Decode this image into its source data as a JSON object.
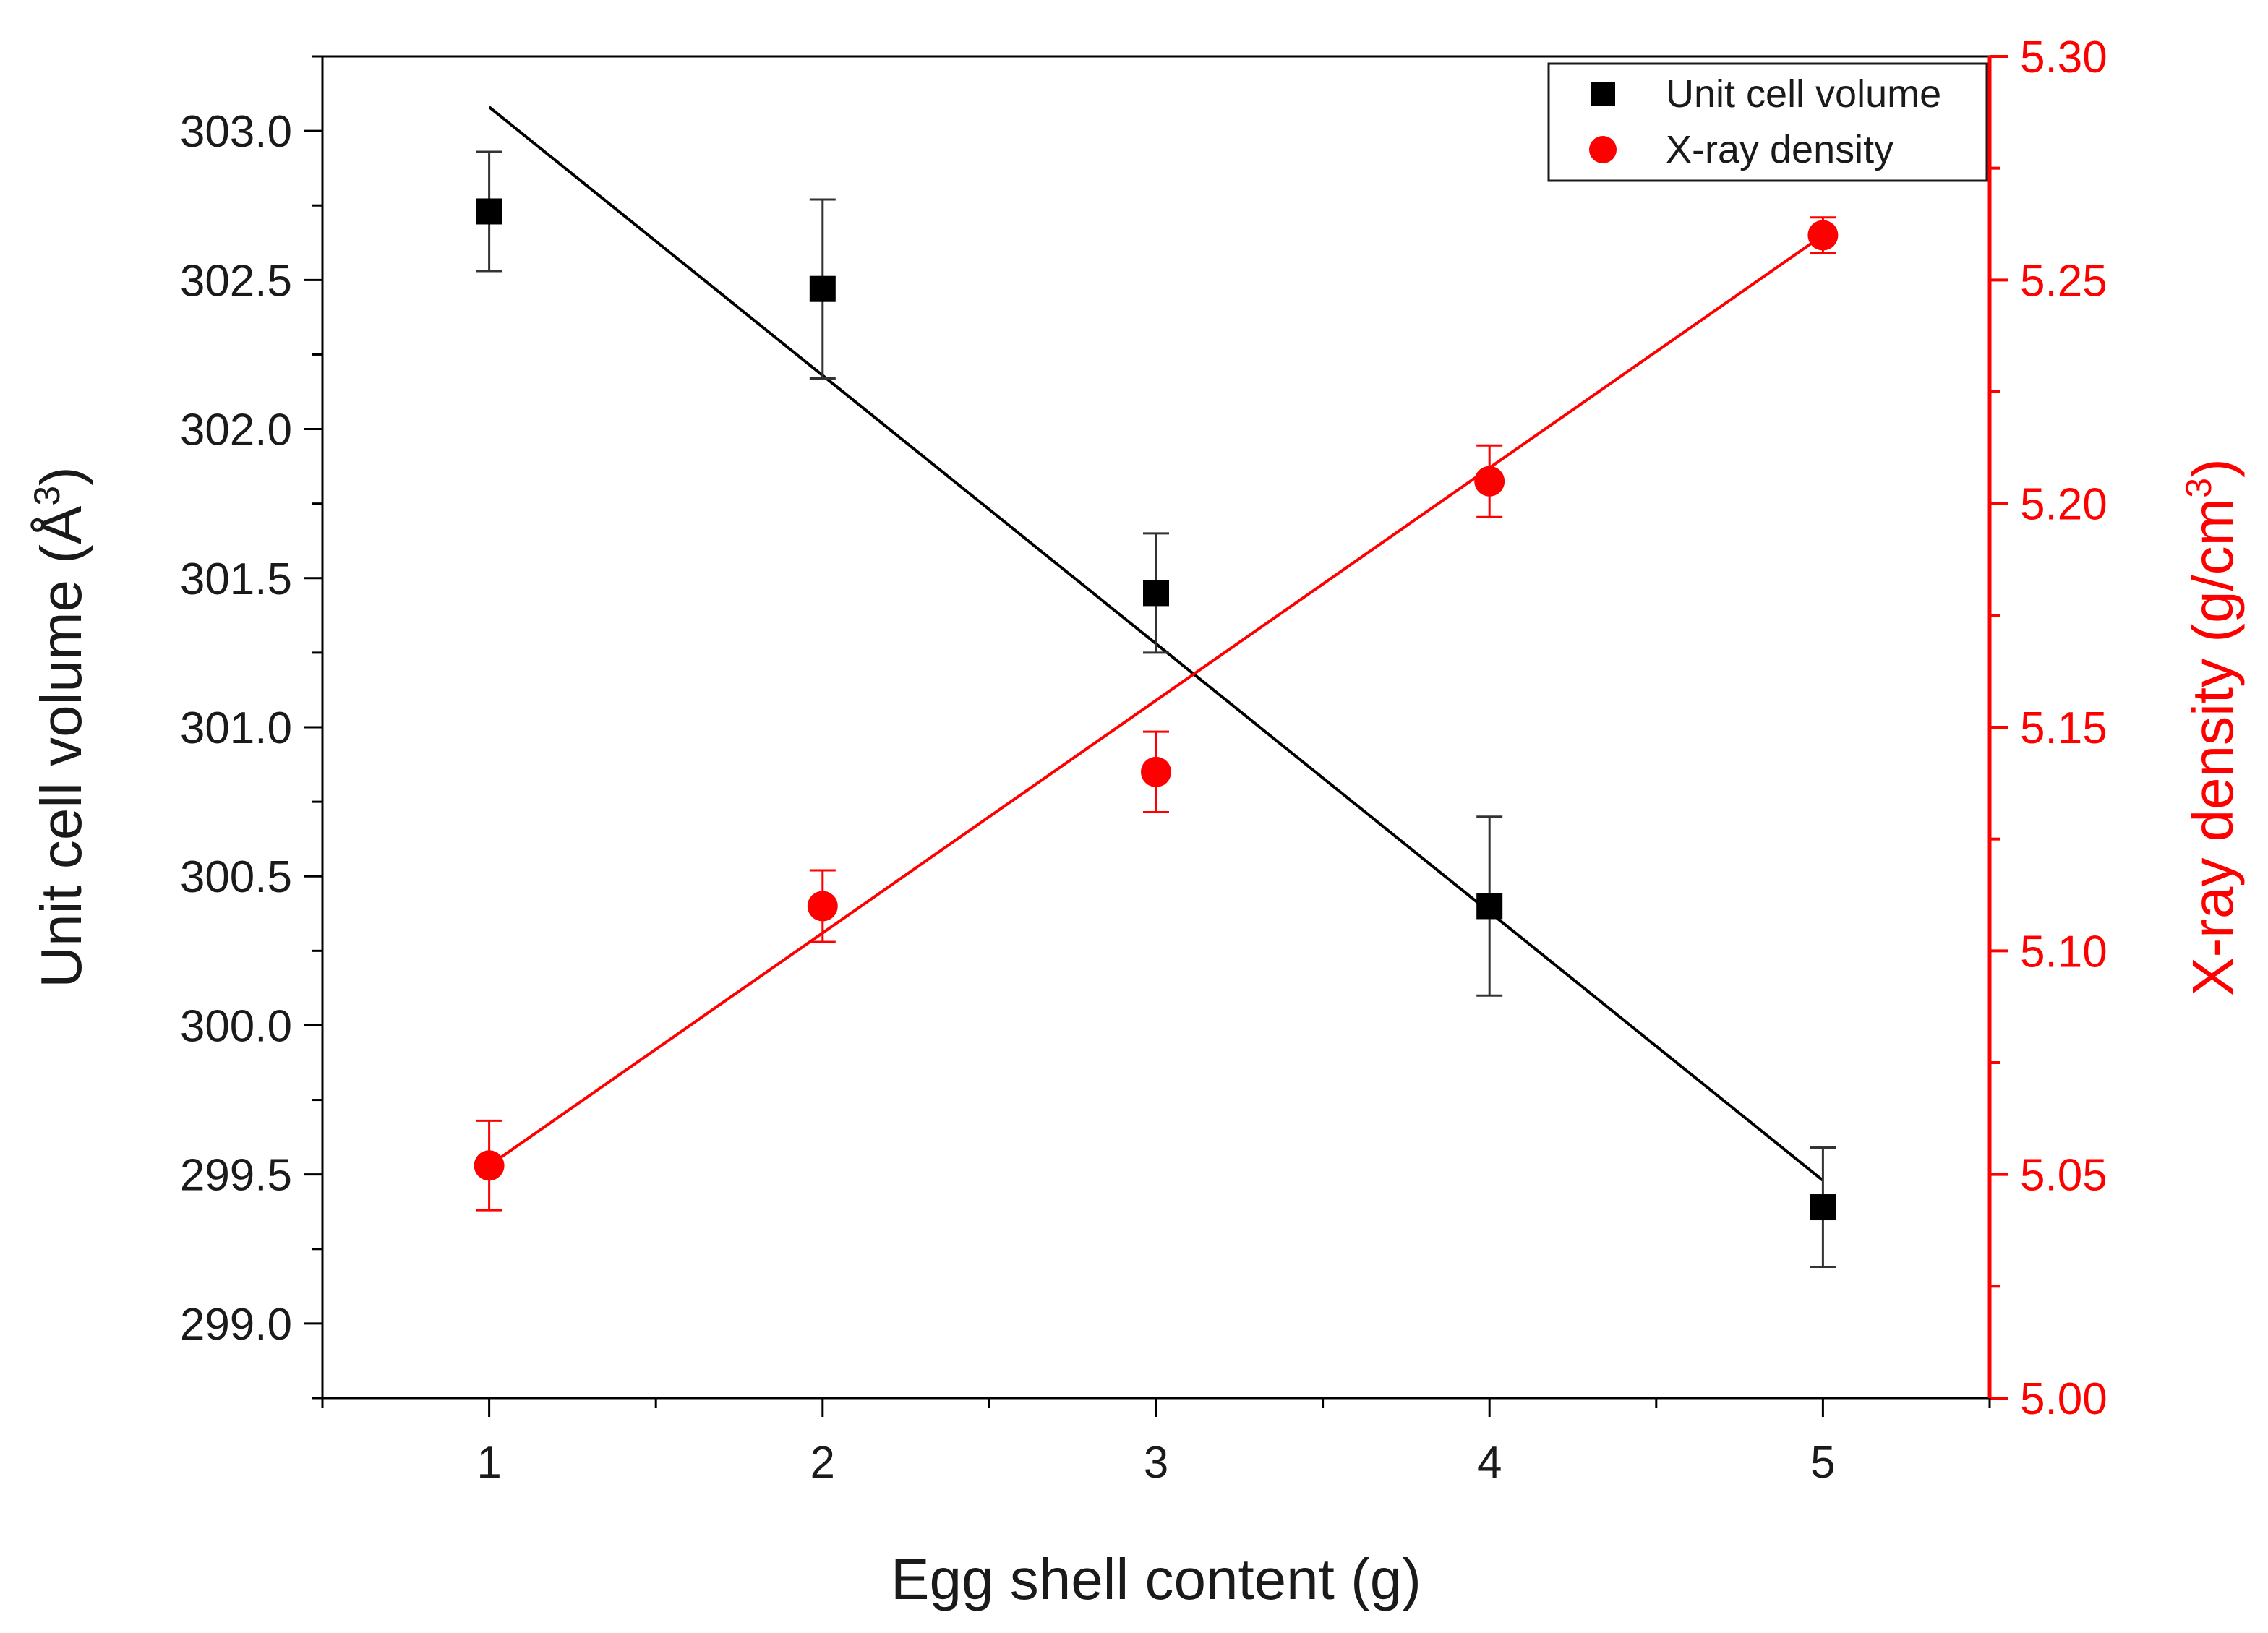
{
  "chart_data": {
    "type": "scatter",
    "xlabel": "Egg shell content (g)",
    "ylabel": "Unit cell volume (Å",
    "ylabel_sup": "3",
    "ylabel_close": ")",
    "y2label": "X-ray density (g/cm",
    "y2label_sup": "3",
    "y2label_close": ")",
    "xlim": [
      0.5,
      5.5
    ],
    "ylim": [
      298.75,
      303.25
    ],
    "y2lim": [
      5.0,
      5.3
    ],
    "x_ticks": [
      1,
      2,
      3,
      4,
      5
    ],
    "x_tick_labels": [
      "1",
      "2",
      "3",
      "4",
      "5"
    ],
    "y_ticks": [
      299.0,
      299.5,
      300.0,
      300.5,
      301.0,
      301.5,
      302.0,
      302.5,
      303.0
    ],
    "y_tick_labels": [
      "299.0",
      "299.5",
      "300.0",
      "300.5",
      "301.0",
      "301.5",
      "302.0",
      "302.5",
      "303.0"
    ],
    "y2_ticks": [
      5.0,
      5.05,
      5.1,
      5.15,
      5.2,
      5.25,
      5.3
    ],
    "y2_tick_labels": [
      "5.00",
      "5.05",
      "5.10",
      "5.15",
      "5.20",
      "5.25",
      "5.30"
    ],
    "legend_position": "top-right",
    "series": [
      {
        "name": "Unit cell volume",
        "axis": "left",
        "marker": "square",
        "color": "#000000",
        "x": [
          1,
          2,
          3,
          4,
          5
        ],
        "y": [
          302.73,
          302.47,
          301.45,
          300.4,
          299.39
        ],
        "y_err": [
          0.2,
          0.3,
          0.2,
          0.3,
          0.2
        ],
        "fit": {
          "x": [
            1,
            5
          ],
          "y": [
            303.08,
            299.48
          ]
        }
      },
      {
        "name": "X-ray density",
        "axis": "right",
        "marker": "circle",
        "color": "#ff0000",
        "x": [
          1,
          2,
          3,
          4,
          5
        ],
        "y": [
          5.052,
          5.11,
          5.14,
          5.205,
          5.26
        ],
        "y_err": [
          0.01,
          0.008,
          0.009,
          0.008,
          0.004
        ],
        "fit": {
          "x": [
            1,
            5
          ],
          "y": [
            5.052,
            5.26
          ]
        }
      }
    ]
  }
}
